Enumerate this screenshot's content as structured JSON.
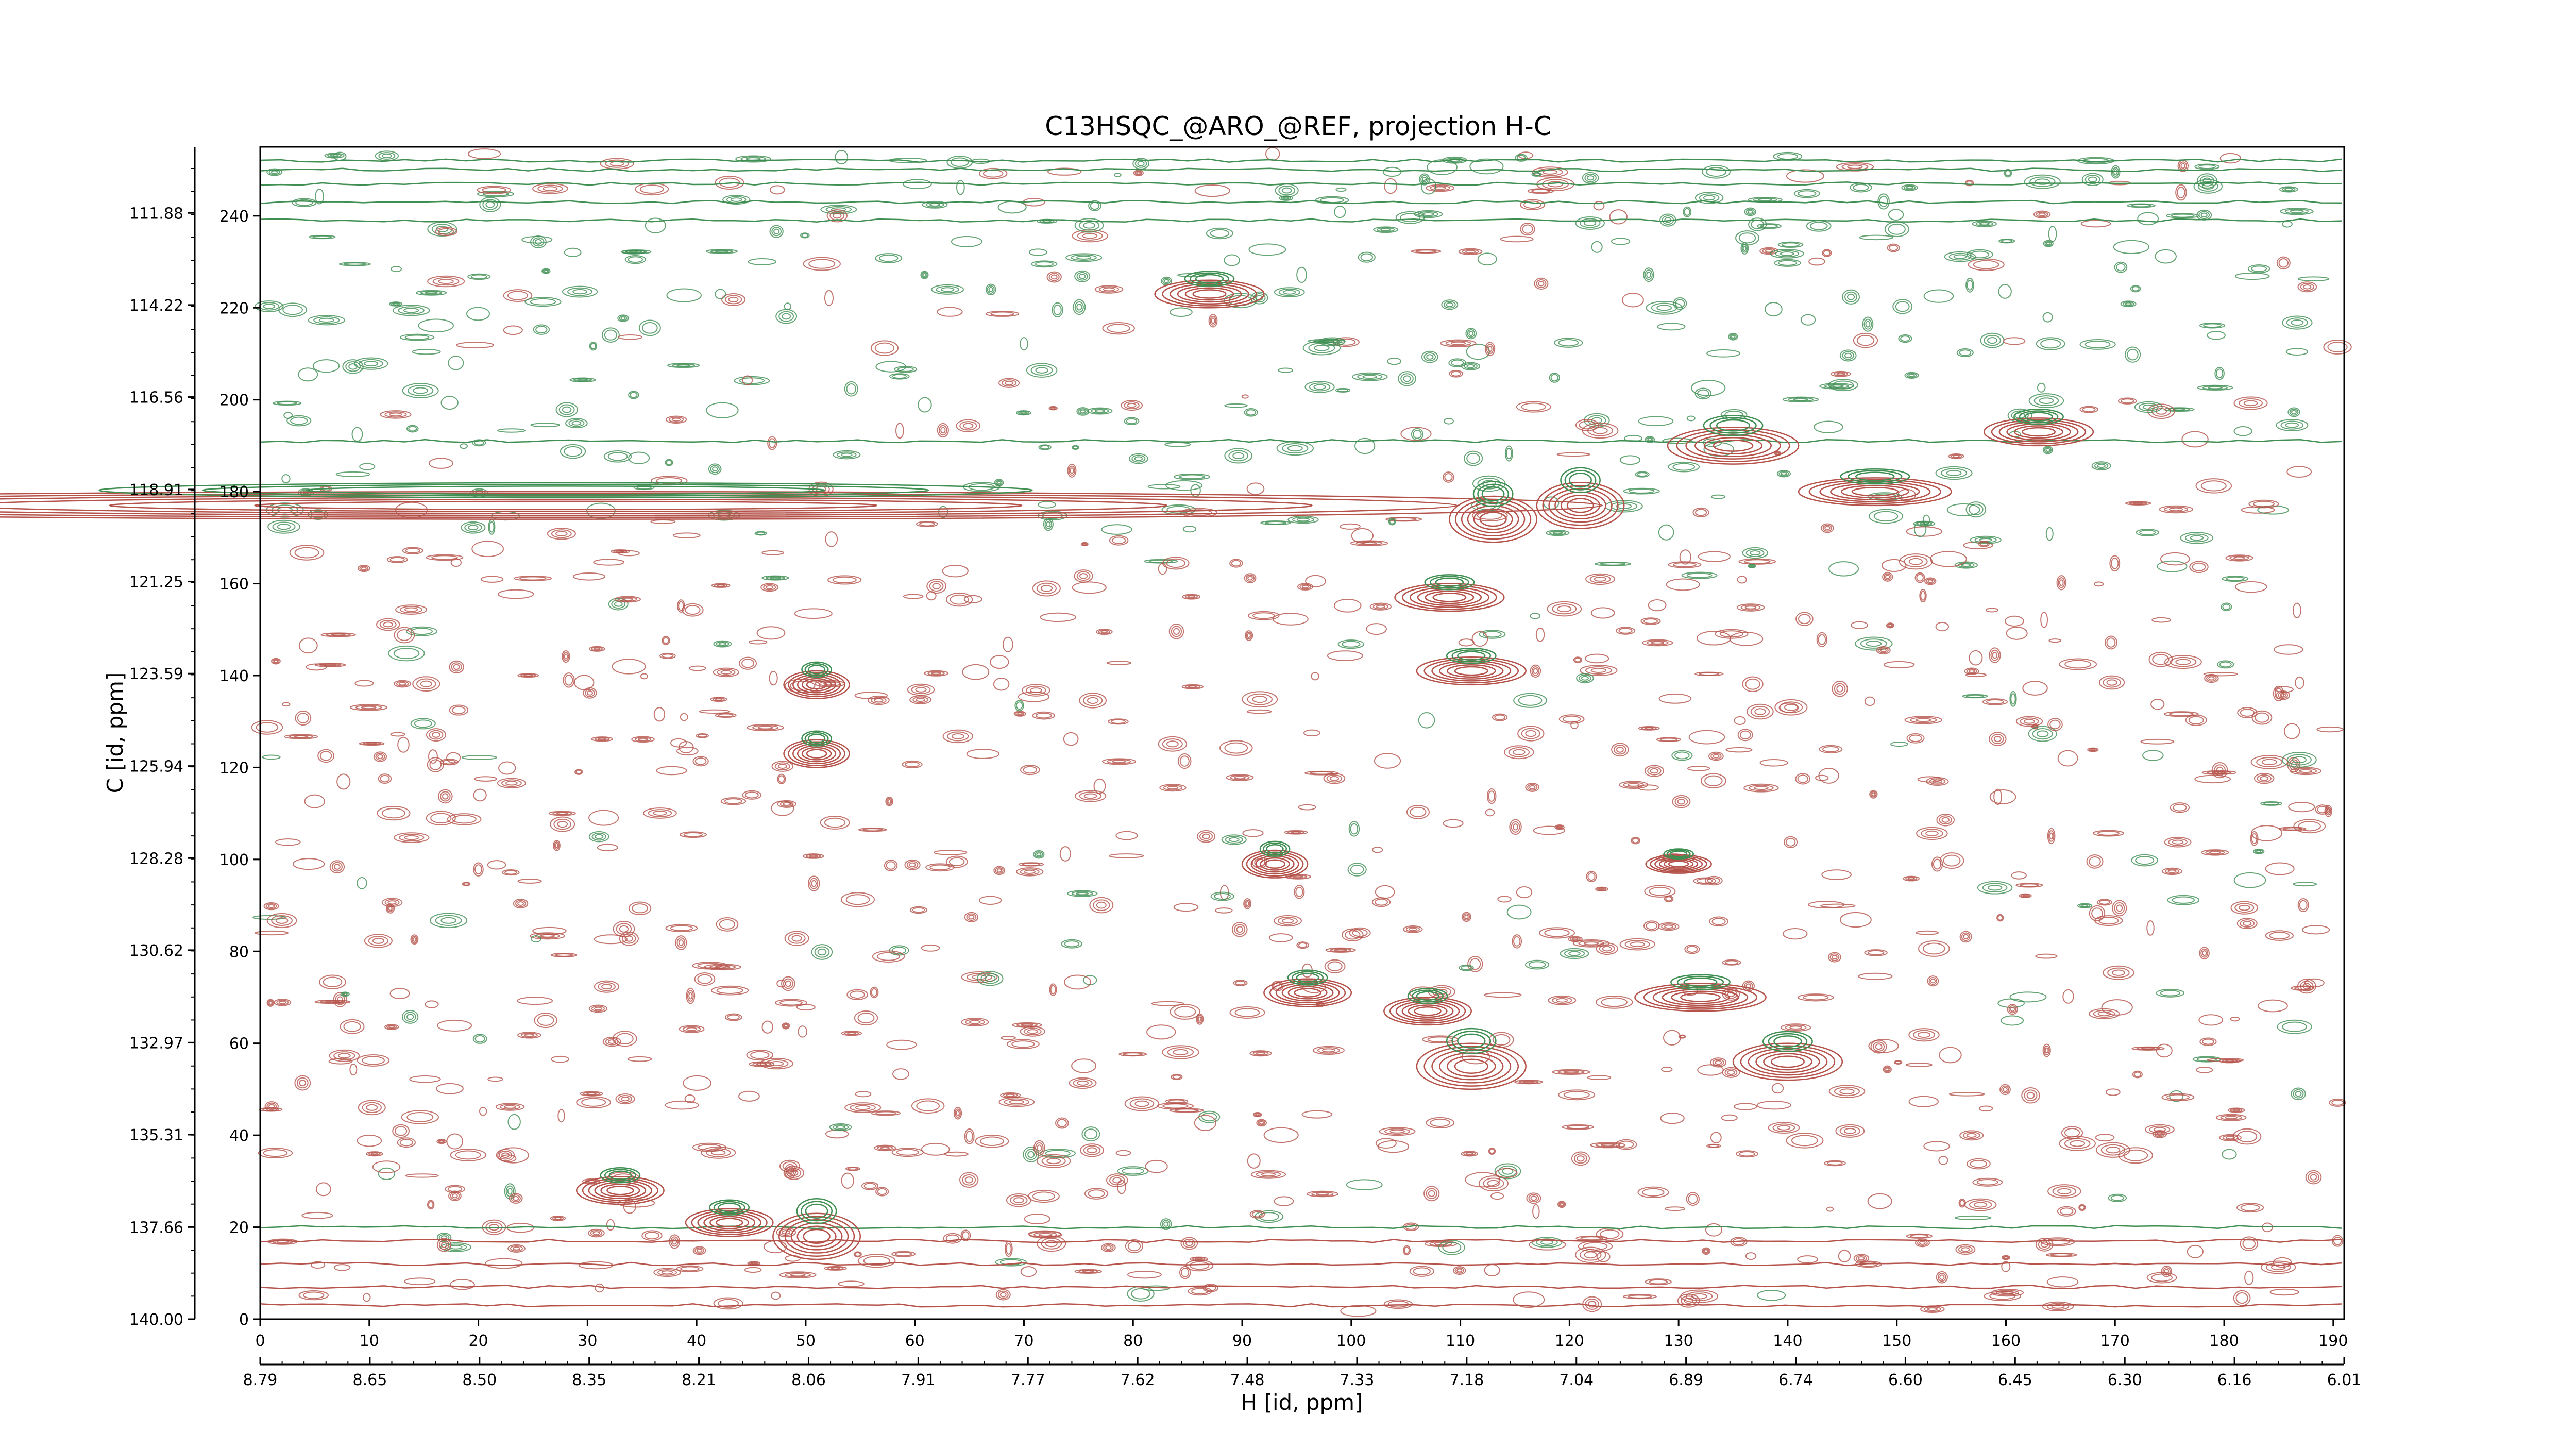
{
  "chart_data": {
    "type": "contour",
    "title": "C13HSQC_@ARO_@REF, projection H-C",
    "xlabel": "H [id, ppm]",
    "ylabel": "C [id, ppm]",
    "x_index_ticks": [
      "0",
      "10",
      "20",
      "30",
      "40",
      "50",
      "60",
      "70",
      "80",
      "90",
      "100",
      "110",
      "120",
      "130",
      "140",
      "150",
      "160",
      "170",
      "180",
      "190"
    ],
    "x_index_range": [
      0,
      191
    ],
    "x_ppm_ticks": [
      "8.79",
      "8.65",
      "8.50",
      "8.35",
      "8.21",
      "8.06",
      "7.91",
      "7.77",
      "7.62",
      "7.48",
      "7.33",
      "7.18",
      "7.04",
      "6.89",
      "6.74",
      "6.60",
      "6.45",
      "6.30",
      "6.16",
      "6.01"
    ],
    "x_ppm_range": [
      8.79,
      6.01
    ],
    "y_index_ticks": [
      "0",
      "20",
      "40",
      "60",
      "80",
      "100",
      "120",
      "140",
      "160",
      "180",
      "200",
      "220",
      "240"
    ],
    "y_index_range": [
      0,
      255
    ],
    "y_ppm_ticks": [
      "140.00",
      "137.66",
      "135.31",
      "132.97",
      "130.62",
      "128.28",
      "125.94",
      "123.59",
      "121.25",
      "118.91",
      "116.56",
      "114.22",
      "111.88"
    ],
    "y_ppm_range": [
      140.0,
      110.2
    ],
    "series": [
      {
        "color": "#b5524a",
        "sign": "positive"
      },
      {
        "color": "#3f8f52",
        "sign": "negative"
      }
    ],
    "peaks": [
      {
        "x": 87,
        "y": 223,
        "w": 5,
        "h": 3
      },
      {
        "x": 28,
        "y": 177,
        "w": 95,
        "h": 3
      },
      {
        "x": 111,
        "y": 141,
        "w": 5,
        "h": 3
      },
      {
        "x": 109,
        "y": 157,
        "w": 5,
        "h": 3
      },
      {
        "x": 113,
        "y": 174,
        "w": 4,
        "h": 5
      },
      {
        "x": 121,
        "y": 177,
        "w": 4,
        "h": 5
      },
      {
        "x": 135,
        "y": 190,
        "w": 6,
        "h": 4
      },
      {
        "x": 163,
        "y": 193,
        "w": 5,
        "h": 3
      },
      {
        "x": 148,
        "y": 180,
        "w": 7,
        "h": 3
      },
      {
        "x": 93,
        "y": 99,
        "w": 3,
        "h": 3
      },
      {
        "x": 96,
        "y": 71,
        "w": 4,
        "h": 3
      },
      {
        "x": 107,
        "y": 67,
        "w": 4,
        "h": 3
      },
      {
        "x": 111,
        "y": 55,
        "w": 5,
        "h": 5
      },
      {
        "x": 132,
        "y": 70,
        "w": 6,
        "h": 3
      },
      {
        "x": 140,
        "y": 56,
        "w": 5,
        "h": 4
      },
      {
        "x": 33,
        "y": 28,
        "w": 4,
        "h": 3
      },
      {
        "x": 43,
        "y": 21,
        "w": 4,
        "h": 3
      },
      {
        "x": 51,
        "y": 18,
        "w": 4,
        "h": 5
      },
      {
        "x": 51,
        "y": 138,
        "w": 3,
        "h": 3
      },
      {
        "x": 51,
        "y": 123,
        "w": 3,
        "h": 3
      },
      {
        "x": 130,
        "y": 99,
        "w": 3,
        "h": 2
      }
    ]
  }
}
